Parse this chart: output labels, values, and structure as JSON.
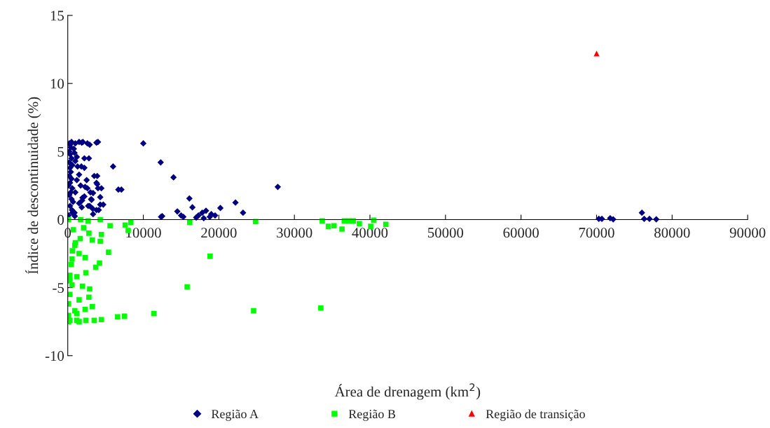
{
  "chart_data": {
    "type": "scatter",
    "xlabel": "Área de drenagem (km$^{2}$)",
    "ylabel": "Índice de descontinuidade (%)",
    "xlim": [
      0,
      90000
    ],
    "xticks": [
      0,
      10000,
      20000,
      30000,
      40000,
      50000,
      60000,
      70000,
      80000,
      90000
    ],
    "ylim": [
      -10,
      15
    ],
    "yticks": [
      -10,
      -5,
      0,
      5,
      10,
      15
    ],
    "grid": false,
    "legend": "bottom",
    "series": [
      {
        "name": "Região A",
        "color": "#000080",
        "marker": "diamond",
        "x": [
          200,
          300,
          500,
          400,
          200,
          300,
          500,
          200,
          600,
          300,
          400,
          200,
          500,
          300,
          100,
          600,
          400,
          200,
          500,
          700,
          300,
          100,
          600,
          800,
          1000,
          900,
          1200,
          1500,
          2000,
          2600,
          1300,
          1800,
          1000,
          1500,
          1200,
          2200,
          2500,
          1700,
          2300,
          1000,
          3000,
          3500,
          3800,
          4000,
          3100,
          1900,
          2200,
          1500,
          2700,
          4300,
          3300,
          3800,
          900,
          4000,
          6000,
          7100,
          10000,
          12300,
          14000,
          12500,
          14500,
          15000,
          15300,
          16100,
          16500,
          17000,
          17300,
          17800,
          18000,
          18300,
          18800,
          19000,
          19500,
          20200,
          22200,
          23200,
          27800,
          70300,
          70700,
          71800,
          72200,
          76000,
          76300,
          77000,
          77900,
          3800,
          2900,
          1850,
          2800,
          2200,
          3900,
          4450,
          3900,
          2600,
          4300,
          4700,
          3350,
          3150,
          1950,
          1850,
          2900,
          3350,
          4100,
          560,
          930,
          12350,
          6700
        ],
        "values": [
          5.6,
          5.5,
          5.7,
          5.3,
          5.0,
          4.8,
          4.5,
          4.2,
          4.0,
          3.8,
          3.5,
          3.2,
          3.0,
          2.7,
          2.5,
          2.3,
          2.0,
          1.8,
          1.5,
          1.3,
          1.0,
          0.3,
          0.5,
          5.2,
          5.6,
          4.9,
          4.6,
          5.7,
          5.7,
          5.6,
          3.9,
          3.9,
          4.3,
          3.3,
          2.9,
          4.5,
          2.9,
          2.5,
          2.4,
          2.0,
          2.0,
          3.2,
          2.7,
          2.3,
          1.5,
          1.4,
          1.7,
          1.2,
          1.0,
          1.1,
          0.8,
          0.7,
          0.5,
          5.7,
          3.9,
          2.2,
          5.6,
          4.2,
          3.1,
          0.25,
          0.6,
          0.3,
          0.2,
          1.55,
          0.9,
          0.15,
          0.3,
          0.5,
          0.1,
          0.65,
          0.2,
          0.4,
          0.3,
          0.85,
          1.25,
          0.5,
          2.4,
          0.05,
          0.05,
          0.1,
          0.02,
          0.5,
          0.05,
          0.05,
          0.02,
          5.65,
          5.5,
          5.65,
          4.5,
          3.8,
          3.2,
          2.3,
          2.6,
          2.3,
          1.65,
          1.1,
          1.95,
          1.45,
          1.6,
          0.9,
          1.0,
          0.4,
          0.7,
          0.7,
          0.25,
          0.2,
          2.2
        ]
      },
      {
        "name": "Região B",
        "color": "#00ff00",
        "marker": "square",
        "x": [
          100,
          1700,
          2700,
          4300,
          5600,
          7600,
          8350,
          8000,
          740,
          2100,
          2800,
          4450,
          3250,
          1650,
          1000,
          4300,
          5400,
          1500,
          2300,
          560,
          4200,
          3700,
          2400,
          280,
          1200,
          560,
          1950,
          2900,
          15800,
          280,
          1500,
          2800,
          100,
          3250,
          2300,
          1200,
          100,
          280,
          1200,
          2400,
          3500,
          4450,
          6600,
          7500,
          11400,
          930,
          100,
          600,
          930,
          460,
          280,
          1500,
          16150,
          18840,
          24600,
          33500,
          24870,
          33690,
          34500,
          35250,
          36300,
          36600,
          37200,
          37800,
          38600,
          40100,
          40500,
          42100
        ],
        "values": [
          0,
          0,
          -0.1,
          0,
          -0.45,
          -0.4,
          -0.2,
          -0.8,
          -0.75,
          -0.6,
          -1.0,
          -1.1,
          -1.5,
          -1.4,
          -1.7,
          -1.6,
          -2.4,
          -2.5,
          -2.8,
          -2.9,
          -3.2,
          -3.5,
          -3.9,
          -4.1,
          -4.2,
          -4.8,
          -4.9,
          -5.1,
          -4.95,
          -5.5,
          -5.9,
          -5.7,
          -6.2,
          -6.4,
          -6.6,
          -6.9,
          -7.05,
          -7.4,
          -7.4,
          -7.4,
          -7.4,
          -7.35,
          -7.15,
          -7.1,
          -6.9,
          -6.7,
          -7.5,
          -2.3,
          -1.9,
          -3.3,
          -4.5,
          -7.5,
          -0.2,
          -2.7,
          -6.7,
          -6.5,
          -0.15,
          -0.1,
          -0.5,
          -0.45,
          -0.7,
          -0.1,
          -0.1,
          -0.1,
          -0.3,
          -0.5,
          -0.05,
          -0.35
        ]
      },
      {
        "name": "Região de transição",
        "color": "#ff0000",
        "marker": "triangle",
        "x": [
          70000
        ],
        "values": [
          12.2
        ]
      }
    ]
  }
}
